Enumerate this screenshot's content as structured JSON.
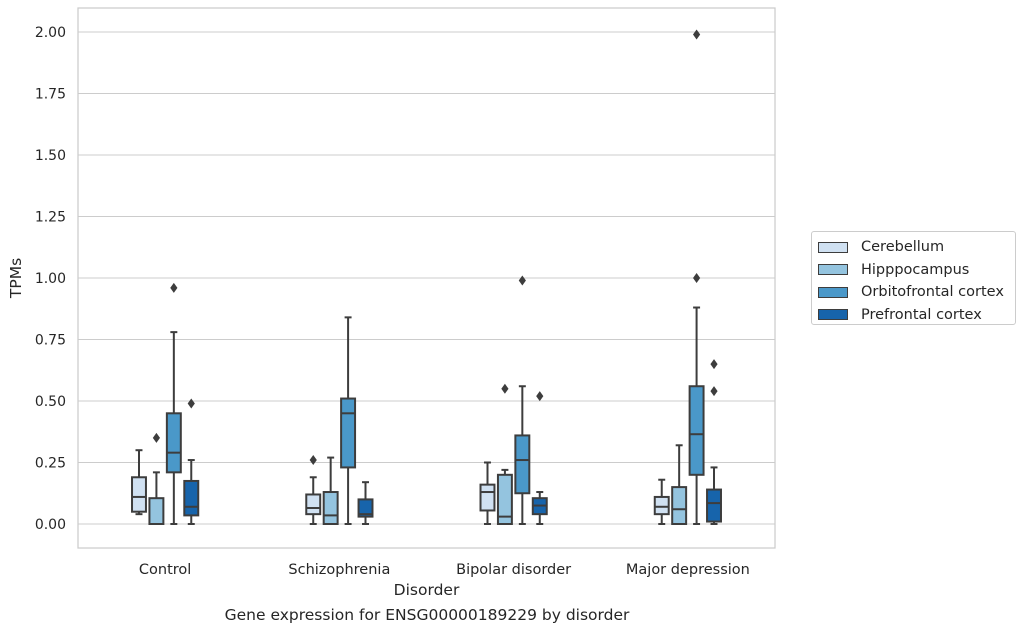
{
  "caption": "Gene expression for ENSG00000189229 by disorder",
  "colors": {
    "series": [
      "#d0e1f2",
      "#94c4df",
      "#4a98c9",
      "#1764ab"
    ],
    "edge": "#3d3d3d",
    "grid": "#cccccc",
    "spine": "#cccccc"
  },
  "chart_data": {
    "type": "box",
    "xlabel": "Disorder",
    "ylabel": "TPMs",
    "ylim": [
      -0.1,
      2.1
    ],
    "yticks": [
      "0.00",
      "0.25",
      "0.50",
      "0.75",
      "1.00",
      "1.25",
      "1.50",
      "1.75",
      "2.00"
    ],
    "grid": "y-major",
    "legend_position": "outside-right",
    "categories": [
      "Control",
      "Schizophrenia",
      "Bipolar disorder",
      "Major depression"
    ],
    "series": [
      {
        "name": "Cerebellum",
        "boxes": [
          {
            "whislo": 0.04,
            "q1": 0.05,
            "med": 0.11,
            "q3": 0.19,
            "whishi": 0.3,
            "fliers": []
          },
          {
            "whislo": 0.0,
            "q1": 0.04,
            "med": 0.065,
            "q3": 0.12,
            "whishi": 0.19,
            "fliers": [
              0.26
            ]
          },
          {
            "whislo": 0.0,
            "q1": 0.055,
            "med": 0.13,
            "q3": 0.16,
            "whishi": 0.25,
            "fliers": []
          },
          {
            "whislo": 0.0,
            "q1": 0.04,
            "med": 0.07,
            "q3": 0.11,
            "whishi": 0.18,
            "fliers": []
          }
        ]
      },
      {
        "name": "Hipppocampus",
        "boxes": [
          {
            "whislo": 0.0,
            "q1": 0.0,
            "med": 0.0,
            "q3": 0.105,
            "whishi": 0.21,
            "fliers": [
              0.35
            ]
          },
          {
            "whislo": 0.0,
            "q1": 0.0,
            "med": 0.035,
            "q3": 0.13,
            "whishi": 0.27,
            "fliers": []
          },
          {
            "whislo": 0.0,
            "q1": 0.0,
            "med": 0.03,
            "q3": 0.2,
            "whishi": 0.22,
            "fliers": [
              0.55
            ]
          },
          {
            "whislo": 0.0,
            "q1": 0.0,
            "med": 0.06,
            "q3": 0.15,
            "whishi": 0.32,
            "fliers": []
          }
        ]
      },
      {
        "name": "Orbitofrontal cortex",
        "boxes": [
          {
            "whislo": 0.0,
            "q1": 0.21,
            "med": 0.29,
            "q3": 0.45,
            "whishi": 0.78,
            "fliers": [
              0.96
            ]
          },
          {
            "whislo": 0.0,
            "q1": 0.23,
            "med": 0.45,
            "q3": 0.51,
            "whishi": 0.84,
            "fliers": []
          },
          {
            "whislo": 0.0,
            "q1": 0.125,
            "med": 0.26,
            "q3": 0.36,
            "whishi": 0.56,
            "fliers": [
              0.99
            ]
          },
          {
            "whislo": 0.0,
            "q1": 0.2,
            "med": 0.365,
            "q3": 0.56,
            "whishi": 0.88,
            "fliers": [
              1.0,
              1.99
            ]
          }
        ]
      },
      {
        "name": "Prefrontal cortex",
        "boxes": [
          {
            "whislo": 0.0,
            "q1": 0.035,
            "med": 0.07,
            "q3": 0.175,
            "whishi": 0.26,
            "fliers": [
              0.49
            ]
          },
          {
            "whislo": 0.0,
            "q1": 0.03,
            "med": 0.04,
            "q3": 0.1,
            "whishi": 0.17,
            "fliers": []
          },
          {
            "whislo": 0.0,
            "q1": 0.04,
            "med": 0.075,
            "q3": 0.105,
            "whishi": 0.13,
            "fliers": [
              0.52
            ]
          },
          {
            "whislo": 0.0,
            "q1": 0.01,
            "med": 0.085,
            "q3": 0.14,
            "whishi": 0.23,
            "fliers": [
              0.54,
              0.65
            ]
          }
        ]
      }
    ]
  }
}
